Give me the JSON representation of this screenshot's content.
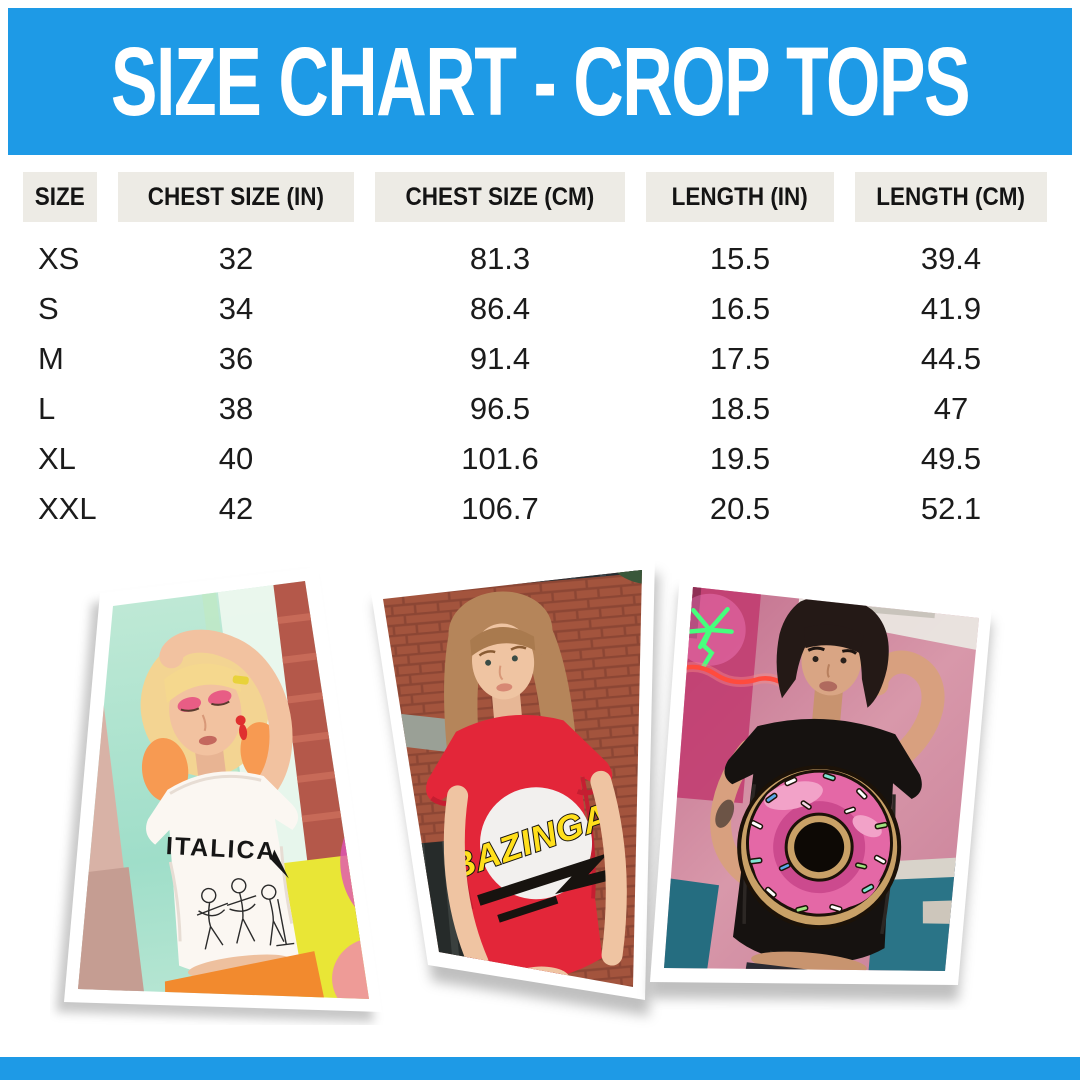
{
  "banner": {
    "title": "SIZE CHART - CROP TOPS",
    "background_color": "#1E9AE6",
    "text_color": "#FFFFFF"
  },
  "size_table": {
    "columns": [
      "SIZE",
      "CHEST SIZE (IN)",
      "CHEST SIZE (CM)",
      "LENGTH (IN)",
      "LENGTH (CM)"
    ],
    "rows": [
      [
        "XS",
        "32",
        "81.3",
        "15.5",
        "39.4"
      ],
      [
        "S",
        "34",
        "86.4",
        "16.5",
        "41.9"
      ],
      [
        "M",
        "36",
        "91.4",
        "17.5",
        "44.5"
      ],
      [
        "L",
        "38",
        "96.5",
        "18.5",
        "47"
      ],
      [
        "XL",
        "40",
        "101.6",
        "19.5",
        "49.5"
      ],
      [
        "XXL",
        "42",
        "106.7",
        "20.5",
        "52.1"
      ]
    ],
    "header_background": "#EDEBE5"
  },
  "chart_data": {
    "type": "table",
    "title": "SIZE CHART - CROP TOPS",
    "columns": [
      "SIZE",
      "CHEST SIZE (IN)",
      "CHEST SIZE (CM)",
      "LENGTH (IN)",
      "LENGTH (CM)"
    ],
    "rows": [
      {
        "size": "XS",
        "chest_in": 32,
        "chest_cm": 81.3,
        "length_in": 15.5,
        "length_cm": 39.4
      },
      {
        "size": "S",
        "chest_in": 34,
        "chest_cm": 86.4,
        "length_in": 16.5,
        "length_cm": 41.9
      },
      {
        "size": "M",
        "chest_in": 36,
        "chest_cm": 91.4,
        "length_in": 17.5,
        "length_cm": 44.5
      },
      {
        "size": "L",
        "chest_in": 38,
        "chest_cm": 96.5,
        "length_in": 18.5,
        "length_cm": 47
      },
      {
        "size": "XL",
        "chest_in": 40,
        "chest_cm": 101.6,
        "length_in": 19.5,
        "length_cm": 49.5
      },
      {
        "size": "XXL",
        "chest_in": 42,
        "chest_cm": 106.7,
        "length_in": 20.5,
        "length_cm": 52.1
      }
    ]
  },
  "photos": [
    {
      "name": "white-italica-crop-top",
      "shirt_text": "ITALICA",
      "shirt_color": "#FAF6F1",
      "description": "blonde model with raised arm, white ITALICA band crop top, orange skirt, pastel room"
    },
    {
      "name": "red-bazinga-crop-top",
      "shirt_text": "BAZINGA!",
      "shirt_color": "#E32639",
      "description": "long-haired model in red BAZINGA! crop top in front of brick wall"
    },
    {
      "name": "black-donut-crop-top",
      "shirt_text": "",
      "shirt_color": "#171310",
      "description": "short-haired model in black crop top with pink sprinkled donut, diner background"
    }
  ],
  "footer": {
    "background_color": "#1E9AE6"
  }
}
